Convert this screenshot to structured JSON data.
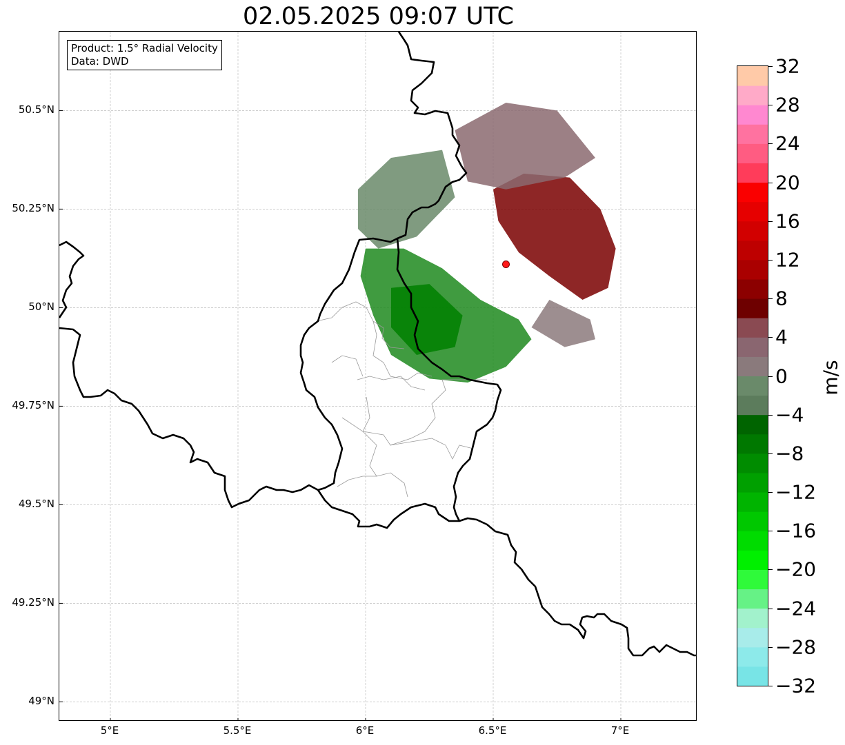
{
  "title": "02.05.2025 09:07 UTC",
  "infobox": {
    "product": "Product: 1.5° Radial Velocity",
    "data": "Data: DWD"
  },
  "map": {
    "lon_range": [
      4.8,
      7.3
    ],
    "lat_range": [
      48.95,
      50.7
    ],
    "lon_ticks": [
      {
        "value": 5.0,
        "label": "5°E"
      },
      {
        "value": 5.5,
        "label": "5.5°E"
      },
      {
        "value": 6.0,
        "label": "6°E"
      },
      {
        "value": 6.5,
        "label": "6.5°E"
      },
      {
        "value": 7.0,
        "label": "7°E"
      }
    ],
    "lat_ticks": [
      {
        "value": 49.0,
        "label": "49°N"
      },
      {
        "value": 49.25,
        "label": "49.25°N"
      },
      {
        "value": 49.5,
        "label": "49.5°N"
      },
      {
        "value": 49.75,
        "label": "49.75°N"
      },
      {
        "value": 50.0,
        "label": "50°N"
      },
      {
        "value": 50.25,
        "label": "50.25°N"
      },
      {
        "value": 50.5,
        "label": "50.5°N"
      }
    ],
    "grid": true,
    "radar_site": {
      "lon": 6.55,
      "lat": 50.11,
      "color": "#ff1a1a"
    },
    "echo_regions": [
      {
        "name": "outbound-far",
        "color": "#7a0000",
        "points": [
          [
            6.5,
            50.3
          ],
          [
            6.62,
            50.34
          ],
          [
            6.8,
            50.33
          ],
          [
            6.92,
            50.25
          ],
          [
            6.98,
            50.15
          ],
          [
            6.95,
            50.05
          ],
          [
            6.85,
            50.02
          ],
          [
            6.72,
            50.08
          ],
          [
            6.6,
            50.14
          ],
          [
            6.52,
            50.22
          ]
        ]
      },
      {
        "name": "outbound-mid",
        "color": "#8b6a70",
        "points": [
          [
            6.35,
            50.45
          ],
          [
            6.55,
            50.52
          ],
          [
            6.75,
            50.5
          ],
          [
            6.9,
            50.38
          ],
          [
            6.78,
            50.33
          ],
          [
            6.55,
            50.3
          ],
          [
            6.4,
            50.32
          ]
        ]
      },
      {
        "name": "outbound-weak",
        "color": "#8c7a7c",
        "points": [
          [
            6.72,
            50.02
          ],
          [
            6.88,
            49.97
          ],
          [
            6.9,
            49.92
          ],
          [
            6.78,
            49.9
          ],
          [
            6.65,
            49.95
          ]
        ]
      },
      {
        "name": "inbound-weak",
        "color": "#6a8a6a",
        "points": [
          [
            5.97,
            50.3
          ],
          [
            6.1,
            50.38
          ],
          [
            6.3,
            50.4
          ],
          [
            6.35,
            50.28
          ],
          [
            6.2,
            50.18
          ],
          [
            6.05,
            50.15
          ],
          [
            5.97,
            50.2
          ]
        ]
      },
      {
        "name": "inbound-strong",
        "color": "#1f8a1f",
        "points": [
          [
            6.0,
            50.15
          ],
          [
            6.15,
            50.15
          ],
          [
            6.3,
            50.1
          ],
          [
            6.45,
            50.02
          ],
          [
            6.6,
            49.97
          ],
          [
            6.65,
            49.92
          ],
          [
            6.55,
            49.85
          ],
          [
            6.4,
            49.81
          ],
          [
            6.25,
            49.82
          ],
          [
            6.1,
            49.88
          ],
          [
            6.03,
            49.98
          ],
          [
            5.98,
            50.08
          ]
        ]
      },
      {
        "name": "inbound-mid",
        "color": "#008000",
        "points": [
          [
            6.1,
            50.05
          ],
          [
            6.25,
            50.06
          ],
          [
            6.38,
            49.98
          ],
          [
            6.35,
            49.9
          ],
          [
            6.2,
            49.88
          ],
          [
            6.1,
            49.95
          ]
        ]
      }
    ]
  },
  "colorbar": {
    "label": "m/s",
    "min": -32,
    "max": 32,
    "ticks": [
      {
        "value": 32,
        "label": "32"
      },
      {
        "value": 28,
        "label": "28"
      },
      {
        "value": 24,
        "label": "24"
      },
      {
        "value": 20,
        "label": "20"
      },
      {
        "value": 16,
        "label": "16"
      },
      {
        "value": 12,
        "label": "12"
      },
      {
        "value": 8,
        "label": "8"
      },
      {
        "value": 4,
        "label": "4"
      },
      {
        "value": 0,
        "label": "0"
      },
      {
        "value": -4,
        "label": "−4"
      },
      {
        "value": -8,
        "label": "−8"
      },
      {
        "value": -12,
        "label": "−12"
      },
      {
        "value": -16,
        "label": "−16"
      },
      {
        "value": -20,
        "label": "−20"
      },
      {
        "value": -24,
        "label": "−24"
      },
      {
        "value": -28,
        "label": "−28"
      },
      {
        "value": -32,
        "label": "−32"
      }
    ],
    "bins": [
      {
        "from": -32,
        "to": -30,
        "color": "#78e4e6"
      },
      {
        "from": -30,
        "to": -28,
        "color": "#8deaea"
      },
      {
        "from": -28,
        "to": -26,
        "color": "#a8ecea"
      },
      {
        "from": -26,
        "to": -24,
        "color": "#a2f2cc"
      },
      {
        "from": -24,
        "to": -22,
        "color": "#66f286"
      },
      {
        "from": -22,
        "to": -20,
        "color": "#2ffa3a"
      },
      {
        "from": -20,
        "to": -18,
        "color": "#00f000"
      },
      {
        "from": -18,
        "to": -16,
        "color": "#00dc00"
      },
      {
        "from": -16,
        "to": -14,
        "color": "#00c800"
      },
      {
        "from": -14,
        "to": -12,
        "color": "#00b400"
      },
      {
        "from": -12,
        "to": -10,
        "color": "#00a000"
      },
      {
        "from": -10,
        "to": -8,
        "color": "#008c00"
      },
      {
        "from": -8,
        "to": -6,
        "color": "#007800"
      },
      {
        "from": -6,
        "to": -4,
        "color": "#006400"
      },
      {
        "from": -4,
        "to": -2,
        "color": "#5c7c5c"
      },
      {
        "from": -2,
        "to": 0,
        "color": "#6a8a6a"
      },
      {
        "from": 0,
        "to": 2,
        "color": "#8a7a7c"
      },
      {
        "from": 2,
        "to": 4,
        "color": "#8a6670"
      },
      {
        "from": 4,
        "to": 6,
        "color": "#8a4a52"
      },
      {
        "from": 6,
        "to": 8,
        "color": "#6e0000"
      },
      {
        "from": 8,
        "to": 10,
        "color": "#8c0000"
      },
      {
        "from": 10,
        "to": 12,
        "color": "#aa0000"
      },
      {
        "from": 12,
        "to": 14,
        "color": "#be0000"
      },
      {
        "from": 14,
        "to": 16,
        "color": "#d20000"
      },
      {
        "from": 16,
        "to": 18,
        "color": "#e60000"
      },
      {
        "from": 18,
        "to": 20,
        "color": "#fa0000"
      },
      {
        "from": 20,
        "to": 22,
        "color": "#ff3c5a"
      },
      {
        "from": 22,
        "to": 24,
        "color": "#ff5c82"
      },
      {
        "from": 24,
        "to": 26,
        "color": "#ff72a0"
      },
      {
        "from": 26,
        "to": 28,
        "color": "#ff88d0"
      },
      {
        "from": 28,
        "to": 30,
        "color": "#ffaac8"
      },
      {
        "from": 30,
        "to": 32,
        "color": "#ffcaa8"
      }
    ]
  }
}
